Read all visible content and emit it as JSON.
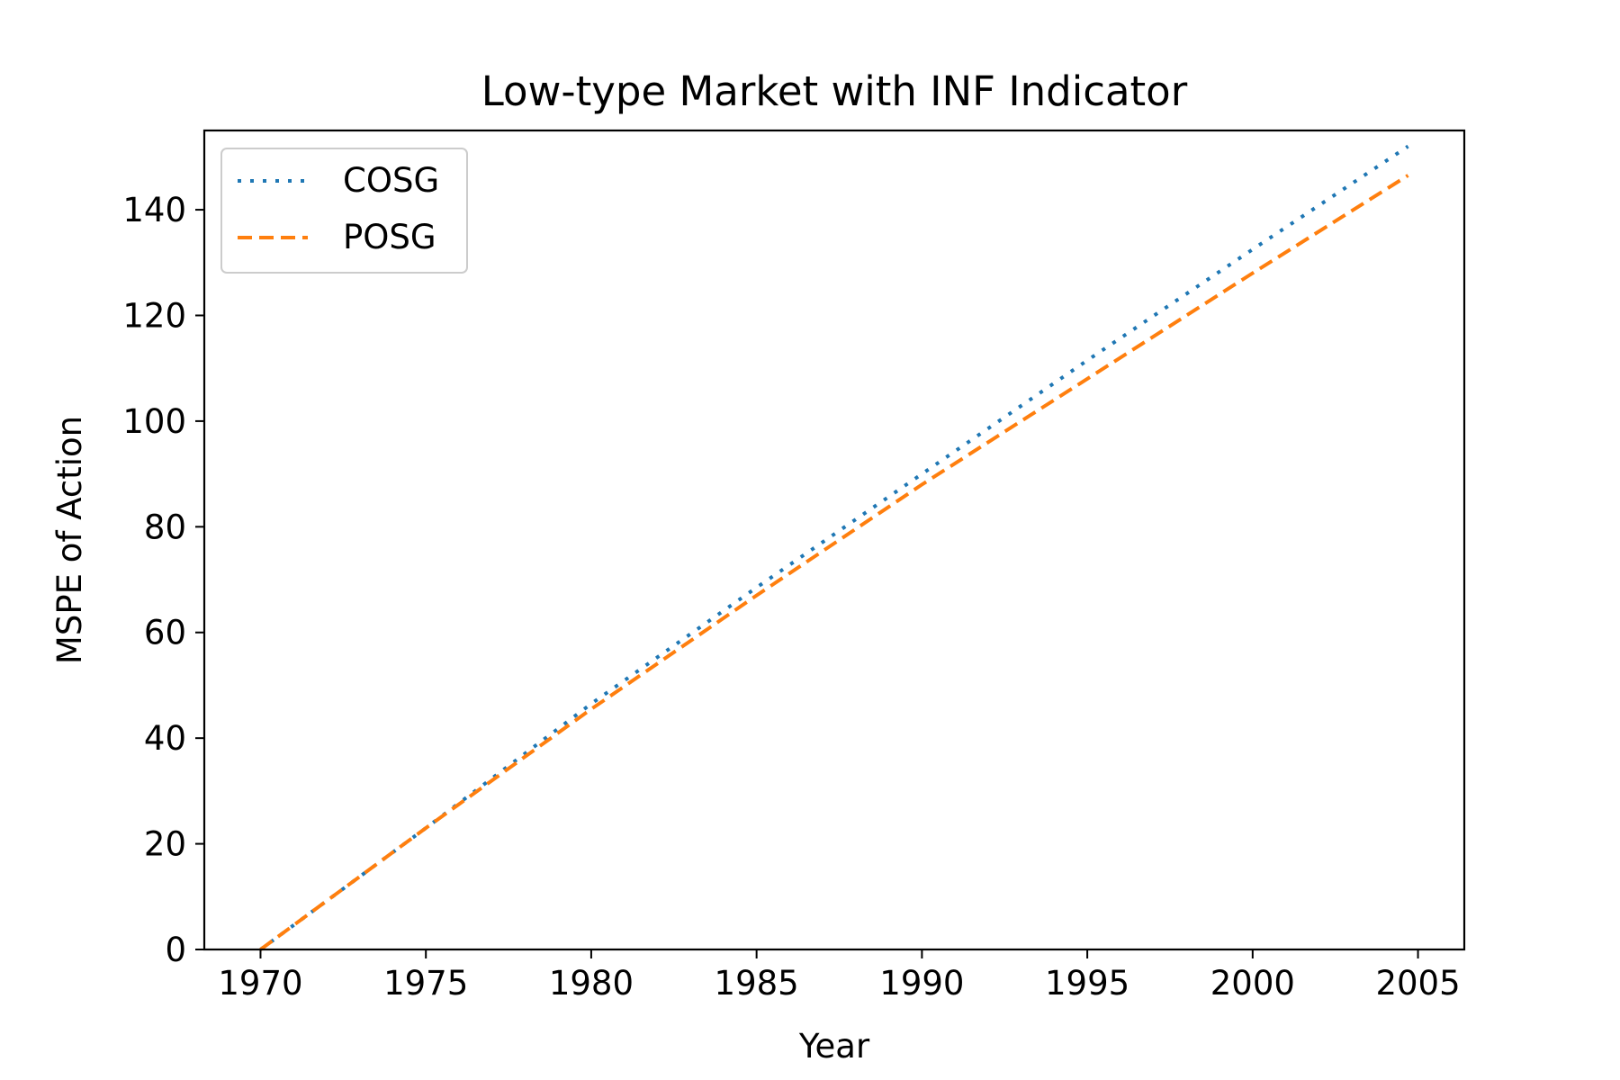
{
  "chart_data": {
    "type": "line",
    "title": "Low-type Market with INF Indicator",
    "xlabel": "Year",
    "ylabel": "MSPE of Action",
    "xlim": [
      1968.3,
      2006.4
    ],
    "ylim": [
      0,
      155
    ],
    "xticks": [
      "1970",
      "1975",
      "1980",
      "1985",
      "1990",
      "1995",
      "2000",
      "2005"
    ],
    "yticks": [
      "0",
      "20",
      "40",
      "60",
      "80",
      "100",
      "120",
      "140"
    ],
    "grid": false,
    "legend_position": "upper-left",
    "series": [
      {
        "name": "COSG",
        "color": "#1f77b4",
        "style": "dotted",
        "x": [
          1970,
          1975,
          1980,
          1985,
          1990,
          1995,
          2000,
          2004.7
        ],
        "y": [
          0,
          23,
          46.5,
          68.5,
          90,
          111.5,
          132.5,
          152
        ]
      },
      {
        "name": "POSG",
        "color": "#ff7f0e",
        "style": "dashed",
        "x": [
          1970,
          1975,
          1980,
          1985,
          1990,
          1995,
          2000,
          2004.7
        ],
        "y": [
          0,
          23,
          45.5,
          67,
          88,
          108,
          128,
          146.5
        ]
      }
    ]
  }
}
